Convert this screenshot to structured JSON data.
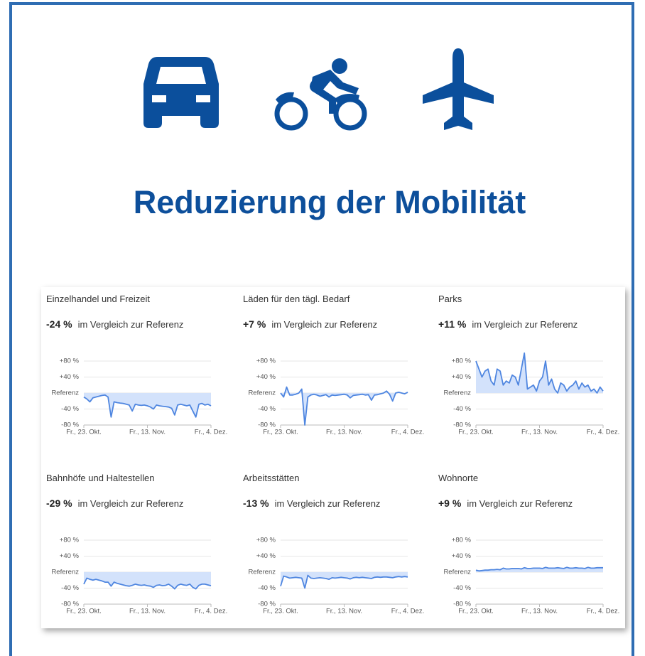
{
  "header": {
    "title": "Reduzierung der Mobilität"
  },
  "chart_data": [
    {
      "type": "line",
      "title": "Einzelhandel und Freizeit",
      "headline": "-24 %",
      "subtitle": "im Vergleich zur Referenz",
      "categories": [
        "Fr., 23. Okt.",
        null,
        null,
        null,
        null,
        null,
        null,
        null,
        null,
        null,
        null,
        null,
        null,
        null,
        null,
        null,
        null,
        null,
        null,
        null,
        null,
        "Fr., 13. Nov.",
        null,
        null,
        null,
        null,
        null,
        null,
        null,
        null,
        null,
        null,
        null,
        null,
        null,
        null,
        null,
        null,
        null,
        null,
        null,
        null,
        "Fr., 4. Dez."
      ],
      "values": [
        -10,
        -15,
        -22,
        -12,
        -10,
        -8,
        -6,
        -5,
        -10,
        -60,
        -22,
        -24,
        -25,
        -26,
        -28,
        -30,
        -45,
        -28,
        -30,
        -31,
        -30,
        -32,
        -35,
        -40,
        -30,
        -32,
        -33,
        -34,
        -35,
        -38,
        -55,
        -30,
        -28,
        -30,
        -32,
        -30,
        -45,
        -60,
        -28,
        -26,
        -30,
        -28,
        -32
      ],
      "color": "#4f86e0",
      "fill": "#d3e2fb",
      "ylim": [
        -80,
        80
      ],
      "yticks": [
        {
          "value": 80,
          "label": "+80 %"
        },
        {
          "value": 40,
          "label": "+40 %"
        },
        {
          "value": 0,
          "label": "Referenz"
        },
        {
          "value": -40,
          "label": "-40 %"
        },
        {
          "value": -80,
          "label": "-80 %"
        }
      ]
    },
    {
      "type": "line",
      "title": "Läden für den tägl. Bedarf",
      "headline": "+7 %",
      "subtitle": "im Vergleich zur Referenz",
      "categories": [
        "Fr., 23. Okt.",
        null,
        null,
        null,
        null,
        null,
        null,
        null,
        null,
        null,
        null,
        null,
        null,
        null,
        null,
        null,
        null,
        null,
        null,
        null,
        null,
        "Fr., 13. Nov.",
        null,
        null,
        null,
        null,
        null,
        null,
        null,
        null,
        null,
        null,
        null,
        null,
        null,
        null,
        null,
        null,
        null,
        null,
        null,
        null,
        "Fr., 4. Dez."
      ],
      "values": [
        0,
        -10,
        15,
        -5,
        -5,
        -3,
        0,
        10,
        -80,
        -10,
        -5,
        -3,
        -5,
        -8,
        -6,
        -4,
        -10,
        -5,
        -6,
        -5,
        -4,
        -3,
        -5,
        -12,
        -6,
        -5,
        -4,
        -3,
        -5,
        -4,
        -18,
        -5,
        -4,
        -2,
        0,
        5,
        -3,
        -20,
        0,
        2,
        0,
        -2,
        2
      ],
      "color": "#4f86e0",
      "fill": "#d3e2fb",
      "ylim": [
        -80,
        80
      ],
      "yticks": [
        {
          "value": 80,
          "label": "+80 %"
        },
        {
          "value": 40,
          "label": "+40 %"
        },
        {
          "value": 0,
          "label": "Referenz"
        },
        {
          "value": -40,
          "label": "-40 %"
        },
        {
          "value": -80,
          "label": "-80 %"
        }
      ]
    },
    {
      "type": "line",
      "title": "Parks",
      "headline": "+11 %",
      "subtitle": "im Vergleich zur Referenz",
      "categories": [
        "Fr., 23. Okt.",
        null,
        null,
        null,
        null,
        null,
        null,
        null,
        null,
        null,
        null,
        null,
        null,
        null,
        null,
        null,
        null,
        null,
        null,
        null,
        null,
        "Fr., 13. Nov.",
        null,
        null,
        null,
        null,
        null,
        null,
        null,
        null,
        null,
        null,
        null,
        null,
        null,
        null,
        null,
        null,
        null,
        null,
        null,
        null,
        "Fr., 4. Dez."
      ],
      "values": [
        80,
        60,
        40,
        55,
        60,
        30,
        20,
        60,
        55,
        20,
        30,
        25,
        45,
        40,
        20,
        60,
        100,
        10,
        15,
        20,
        5,
        30,
        40,
        80,
        20,
        35,
        10,
        0,
        25,
        20,
        5,
        15,
        20,
        30,
        10,
        25,
        15,
        20,
        5,
        10,
        0,
        15,
        5
      ],
      "color": "#4f86e0",
      "fill": "#d3e2fb",
      "ylim": [
        -80,
        80
      ],
      "yticks": [
        {
          "value": 80,
          "label": "+80 %"
        },
        {
          "value": 40,
          "label": "+40 %"
        },
        {
          "value": 0,
          "label": "Referenz"
        },
        {
          "value": -40,
          "label": "-40 %"
        },
        {
          "value": -80,
          "label": "-80 %"
        }
      ]
    },
    {
      "type": "line",
      "title": "Bahnhöfe und Haltestellen",
      "headline": "-29 %",
      "subtitle": "im Vergleich zur Referenz",
      "categories": [
        "Fr., 23. Okt.",
        null,
        null,
        null,
        null,
        null,
        null,
        null,
        null,
        null,
        null,
        null,
        null,
        null,
        null,
        null,
        null,
        null,
        null,
        null,
        null,
        "Fr., 13. Nov.",
        null,
        null,
        null,
        null,
        null,
        null,
        null,
        null,
        null,
        null,
        null,
        null,
        null,
        null,
        null,
        null,
        null,
        null,
        null,
        null,
        "Fr., 4. Dez."
      ],
      "values": [
        -30,
        -15,
        -18,
        -20,
        -18,
        -20,
        -22,
        -25,
        -25,
        -35,
        -25,
        -28,
        -30,
        -32,
        -34,
        -35,
        -33,
        -30,
        -32,
        -33,
        -32,
        -34,
        -35,
        -38,
        -33,
        -32,
        -34,
        -33,
        -30,
        -35,
        -42,
        -33,
        -30,
        -32,
        -33,
        -30,
        -38,
        -42,
        -33,
        -30,
        -30,
        -32,
        -34
      ],
      "color": "#4f86e0",
      "fill": "#d3e2fb",
      "ylim": [
        -80,
        80
      ],
      "yticks": [
        {
          "value": 80,
          "label": "+80 %"
        },
        {
          "value": 40,
          "label": "+40 %"
        },
        {
          "value": 0,
          "label": "Referenz"
        },
        {
          "value": -40,
          "label": "-40 %"
        },
        {
          "value": -80,
          "label": "-80 %"
        }
      ]
    },
    {
      "type": "line",
      "title": "Arbeitsstätten",
      "headline": "-13 %",
      "subtitle": "im Vergleich zur Referenz",
      "categories": [
        "Fr., 23. Okt.",
        null,
        null,
        null,
        null,
        null,
        null,
        null,
        null,
        null,
        null,
        null,
        null,
        null,
        null,
        null,
        null,
        null,
        null,
        null,
        null,
        "Fr., 13. Nov.",
        null,
        null,
        null,
        null,
        null,
        null,
        null,
        null,
        null,
        null,
        null,
        null,
        null,
        null,
        null,
        null,
        null,
        null,
        null,
        null,
        "Fr., 4. Dez."
      ],
      "values": [
        -35,
        -10,
        -12,
        -15,
        -14,
        -13,
        -14,
        -15,
        -40,
        -8,
        -15,
        -16,
        -15,
        -14,
        -15,
        -16,
        -18,
        -14,
        -15,
        -14,
        -13,
        -14,
        -15,
        -17,
        -14,
        -13,
        -14,
        -13,
        -14,
        -15,
        -16,
        -13,
        -12,
        -13,
        -12,
        -12,
        -13,
        -14,
        -12,
        -11,
        -12,
        -11,
        -12
      ],
      "color": "#4f86e0",
      "fill": "#d3e2fb",
      "ylim": [
        -80,
        80
      ],
      "yticks": [
        {
          "value": 80,
          "label": "+80 %"
        },
        {
          "value": 40,
          "label": "+40 %"
        },
        {
          "value": 0,
          "label": "Referenz"
        },
        {
          "value": -40,
          "label": "-40 %"
        },
        {
          "value": -80,
          "label": "-80 %"
        }
      ]
    },
    {
      "type": "line",
      "title": "Wohnorte",
      "headline": "+9 %",
      "subtitle": "im Vergleich zur Referenz",
      "categories": [
        "Fr., 23. Okt.",
        null,
        null,
        null,
        null,
        null,
        null,
        null,
        null,
        null,
        null,
        null,
        null,
        null,
        null,
        null,
        null,
        null,
        null,
        null,
        null,
        "Fr., 13. Nov.",
        null,
        null,
        null,
        null,
        null,
        null,
        null,
        null,
        null,
        null,
        null,
        null,
        null,
        null,
        null,
        null,
        null,
        null,
        null,
        null,
        "Fr., 4. Dez."
      ],
      "values": [
        5,
        3,
        4,
        5,
        5,
        6,
        6,
        7,
        6,
        10,
        8,
        8,
        9,
        9,
        9,
        8,
        11,
        9,
        9,
        10,
        10,
        10,
        9,
        12,
        10,
        10,
        10,
        11,
        10,
        9,
        12,
        10,
        10,
        11,
        10,
        10,
        9,
        12,
        10,
        10,
        11,
        11,
        11
      ],
      "color": "#4f86e0",
      "fill": "#d3e2fb",
      "ylim": [
        -80,
        80
      ],
      "yticks": [
        {
          "value": 80,
          "label": "+80 %"
        },
        {
          "value": 40,
          "label": "+40 %"
        },
        {
          "value": 0,
          "label": "Referenz"
        },
        {
          "value": -40,
          "label": "-40 %"
        },
        {
          "value": -80,
          "label": "-80 %"
        }
      ]
    }
  ]
}
